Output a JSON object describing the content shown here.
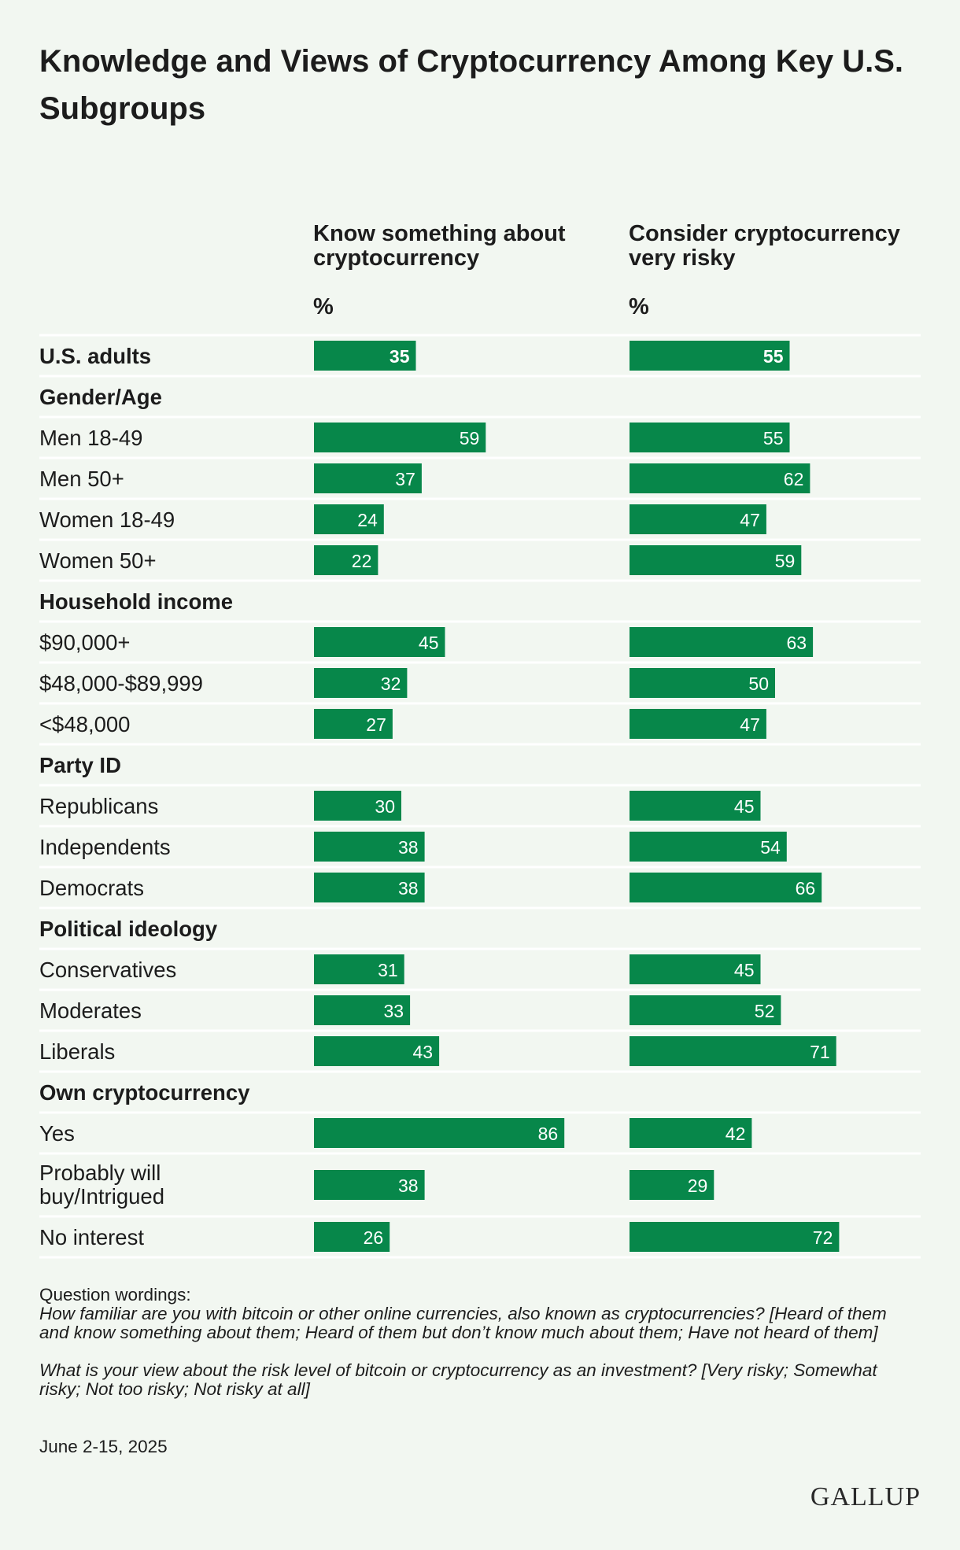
{
  "title": "Knowledge and Views of Cryptocurrency Among Key U.S. Subgroups",
  "columns": [
    {
      "label": "Know something about cryptocurrency",
      "unit": "%"
    },
    {
      "label": "Consider cryptocurrency very risky",
      "unit": "%"
    }
  ],
  "notes": {
    "heading": "Question wordings:",
    "q1": "How familiar are you with bitcoin or other online currencies, also known as cryptocurrencies? [Heard of them and know something about them; Heard of them but don’t know much about them; Have not heard of them]",
    "q2": "What is your view about the risk level of bitcoin or cryptocurrency as an investment? [Very risky; Somewhat risky; Not too risky; Not risky at all]"
  },
  "date": "June 2-15, 2025",
  "logo": "GALLUP",
  "colors": {
    "bar": "#07874a",
    "background": "#f2f7f1",
    "rule": "#ffffff",
    "text": "#1c1c1c"
  },
  "chart_data": {
    "type": "bar",
    "orientation": "horizontal",
    "unit": "%",
    "series_names": [
      "Know something about cryptocurrency",
      "Consider cryptocurrency very risky"
    ],
    "rows": [
      {
        "label": "U.S. adults",
        "kind": "total",
        "values": [
          35,
          55
        ]
      },
      {
        "label": "Gender/Age",
        "kind": "header"
      },
      {
        "label": "Men 18-49",
        "kind": "item",
        "values": [
          59,
          55
        ]
      },
      {
        "label": "Men 50+",
        "kind": "item",
        "values": [
          37,
          62
        ]
      },
      {
        "label": "Women 18-49",
        "kind": "item",
        "values": [
          24,
          47
        ]
      },
      {
        "label": "Women 50+",
        "kind": "item",
        "values": [
          22,
          59
        ]
      },
      {
        "label": "Household income",
        "kind": "header"
      },
      {
        "label": "$90,000+",
        "kind": "item",
        "values": [
          45,
          63
        ]
      },
      {
        "label": "$48,000-$89,999",
        "kind": "item",
        "values": [
          32,
          50
        ]
      },
      {
        "label": "<$48,000",
        "kind": "item",
        "values": [
          27,
          47
        ]
      },
      {
        "label": "Party ID",
        "kind": "header"
      },
      {
        "label": "Republicans",
        "kind": "item",
        "values": [
          30,
          45
        ]
      },
      {
        "label": "Independents",
        "kind": "item",
        "values": [
          38,
          54
        ]
      },
      {
        "label": "Democrats",
        "kind": "item",
        "values": [
          38,
          66
        ]
      },
      {
        "label": "Political ideology",
        "kind": "header"
      },
      {
        "label": "Conservatives",
        "kind": "item",
        "values": [
          31,
          45
        ]
      },
      {
        "label": "Moderates",
        "kind": "item",
        "values": [
          33,
          52
        ]
      },
      {
        "label": "Liberals",
        "kind": "item",
        "values": [
          43,
          71
        ]
      },
      {
        "label": "Own cryptocurrency",
        "kind": "header"
      },
      {
        "label": "Yes",
        "kind": "item",
        "values": [
          86,
          42
        ]
      },
      {
        "label": "Probably will buy/Intrigued",
        "kind": "item",
        "values": [
          38,
          29
        ]
      },
      {
        "label": "No interest",
        "kind": "item",
        "values": [
          26,
          72
        ]
      }
    ]
  }
}
